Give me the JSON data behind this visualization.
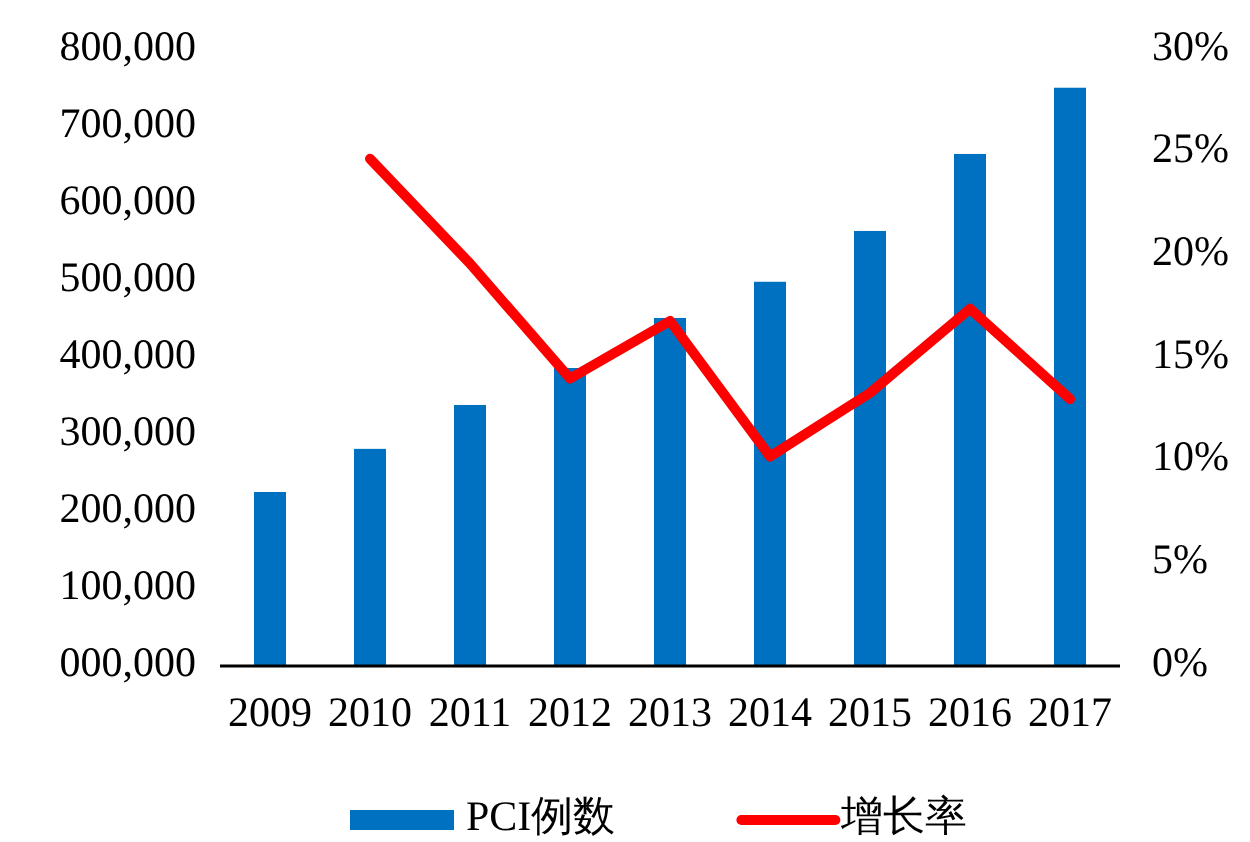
{
  "chart_data": {
    "type": "bar",
    "categories": [
      "2009",
      "2010",
      "2011",
      "2012",
      "2013",
      "2014",
      "2015",
      "2016",
      "2017"
    ],
    "series": [
      {
        "name": "PCI例数",
        "color": "#0070c0",
        "values": [
          226000,
          282000,
          339000,
          387000,
          452000,
          499000,
          565000,
          665000,
          751000
        ]
      },
      {
        "name": "增长率",
        "type": "line",
        "axis": "y2",
        "color": "#ff0000",
        "values": [
          null,
          24.7,
          19.6,
          14.0,
          16.8,
          10.2,
          13.3,
          17.4,
          13.0
        ]
      }
    ],
    "ylim": [
      0,
      800000
    ],
    "yticks": [
      {
        "value": 0,
        "label": "000,000"
      },
      {
        "value": 100000,
        "label": "100,000"
      },
      {
        "value": 200000,
        "label": "200,000"
      },
      {
        "value": 300000,
        "label": "300,000"
      },
      {
        "value": 400000,
        "label": "400,000"
      },
      {
        "value": 500000,
        "label": "500,000"
      },
      {
        "value": 600000,
        "label": "600,000"
      },
      {
        "value": 700000,
        "label": "700,000"
      },
      {
        "value": 800000,
        "label": "800,000"
      }
    ],
    "y2lim": [
      0,
      30
    ],
    "y2ticks": [
      {
        "value": 0,
        "label": "0%"
      },
      {
        "value": 5,
        "label": "5%"
      },
      {
        "value": 10,
        "label": "10%"
      },
      {
        "value": 15,
        "label": "15%"
      },
      {
        "value": 20,
        "label": "20%"
      },
      {
        "value": 25,
        "label": "25%"
      },
      {
        "value": 30,
        "label": "30%"
      }
    ],
    "legend": "bottom",
    "grid": false
  }
}
